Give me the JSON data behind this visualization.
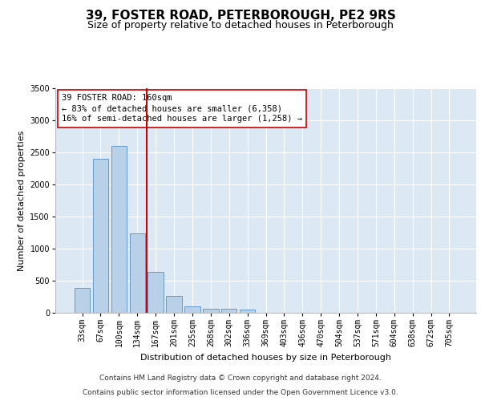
{
  "title": "39, FOSTER ROAD, PETERBOROUGH, PE2 9RS",
  "subtitle": "Size of property relative to detached houses in Peterborough",
  "xlabel": "Distribution of detached houses by size in Peterborough",
  "ylabel": "Number of detached properties",
  "categories": [
    "33sqm",
    "67sqm",
    "100sqm",
    "134sqm",
    "167sqm",
    "201sqm",
    "235sqm",
    "268sqm",
    "302sqm",
    "336sqm",
    "369sqm",
    "403sqm",
    "436sqm",
    "470sqm",
    "504sqm",
    "537sqm",
    "571sqm",
    "604sqm",
    "638sqm",
    "672sqm",
    "705sqm"
  ],
  "values": [
    390,
    2400,
    2600,
    1240,
    640,
    260,
    100,
    60,
    60,
    45,
    0,
    0,
    0,
    0,
    0,
    0,
    0,
    0,
    0,
    0,
    0
  ],
  "bar_color": "#b8d0e8",
  "bar_edge_color": "#6699cc",
  "fig_background": "#ffffff",
  "axes_background": "#dde8f5",
  "grid_color": "#ffffff",
  "red_line_color": "#cc0000",
  "red_line_bin": 4,
  "annotation_text": "39 FOSTER ROAD: 160sqm\n← 83% of detached houses are smaller (6,358)\n16% of semi-detached houses are larger (1,258) →",
  "annotation_box_facecolor": "#ffffff",
  "annotation_box_edgecolor": "#cc0000",
  "ylim": [
    0,
    3500
  ],
  "yticks": [
    0,
    500,
    1000,
    1500,
    2000,
    2500,
    3000,
    3500
  ],
  "title_fontsize": 11,
  "subtitle_fontsize": 9,
  "axis_label_fontsize": 8,
  "tick_fontsize": 7,
  "annotation_fontsize": 7.5,
  "footer_fontsize": 6.5,
  "footer_line1": "Contains HM Land Registry data © Crown copyright and database right 2024.",
  "footer_line2": "Contains public sector information licensed under the Open Government Licence v3.0."
}
